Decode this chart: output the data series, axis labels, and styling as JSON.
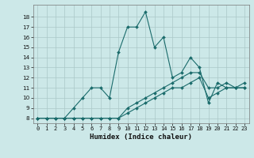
{
  "xlabel": "Humidex (Indice chaleur)",
  "background_color": "#cce8e8",
  "grid_color": "#aac8c8",
  "line_color": "#1a6b6b",
  "xlim": [
    -0.5,
    23.5
  ],
  "ylim": [
    7.5,
    19.2
  ],
  "yticks": [
    8,
    9,
    10,
    11,
    12,
    13,
    14,
    15,
    16,
    17,
    18
  ],
  "xticks": [
    0,
    1,
    2,
    3,
    4,
    5,
    6,
    7,
    8,
    9,
    10,
    11,
    12,
    13,
    14,
    15,
    16,
    17,
    18,
    19,
    20,
    21,
    22,
    23
  ],
  "line1_x": [
    0,
    1,
    2,
    3,
    4,
    5,
    6,
    7,
    8,
    9,
    10,
    11,
    12,
    13,
    14,
    15,
    16,
    17,
    18,
    19,
    20,
    21,
    22,
    23
  ],
  "line1_y": [
    8,
    8,
    8,
    8,
    8,
    8,
    8,
    8,
    8,
    8,
    8.5,
    9,
    9.5,
    10,
    10.5,
    11,
    11,
    11.5,
    12,
    10,
    10.5,
    11,
    11,
    11
  ],
  "line2_x": [
    0,
    1,
    2,
    3,
    4,
    5,
    6,
    7,
    8,
    9,
    10,
    11,
    12,
    13,
    14,
    15,
    16,
    17,
    18,
    19,
    20,
    21,
    22,
    23
  ],
  "line2_y": [
    8,
    8,
    8,
    8,
    8,
    8,
    8,
    8,
    8,
    8,
    9,
    9.5,
    10,
    10.5,
    11,
    11.5,
    12,
    12.5,
    12.5,
    11,
    11,
    11.5,
    11,
    11.5
  ],
  "line3_x": [
    0,
    1,
    2,
    3,
    4,
    5,
    6,
    7,
    8,
    9,
    10,
    11,
    12,
    13,
    14,
    15,
    16,
    17,
    18,
    19,
    20,
    21,
    22,
    23
  ],
  "line3_y": [
    8,
    8,
    8,
    8,
    9,
    10,
    11,
    11,
    10,
    14.5,
    17,
    17,
    18.5,
    15,
    16,
    12,
    12.5,
    14,
    13,
    9.5,
    11.5,
    11,
    11,
    11
  ]
}
